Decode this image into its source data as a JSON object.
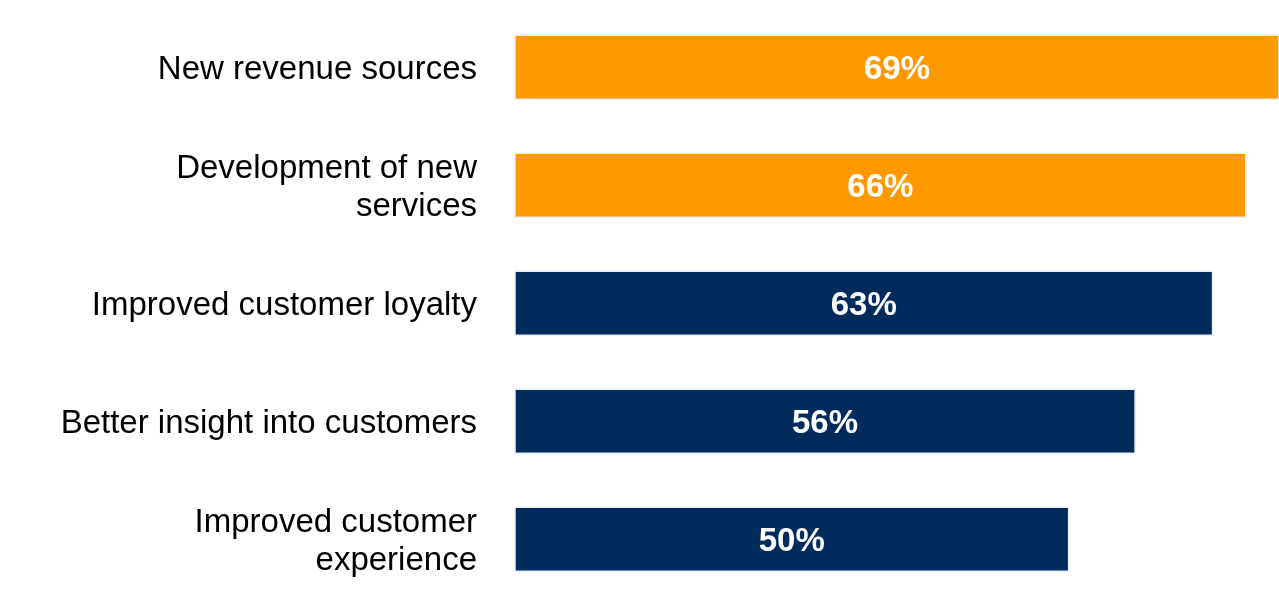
{
  "chart_data": {
    "type": "bar",
    "orientation": "horizontal",
    "data_labels": true,
    "categories": [
      "New revenue sources",
      "Development of new\nservices",
      "Improved customer loyalty",
      "Better insight into customers",
      "Improved customer\nexperience"
    ],
    "values": [
      69,
      66,
      63,
      56,
      50
    ],
    "value_labels": [
      "69%",
      "66%",
      "63%",
      "56%",
      "50%"
    ],
    "colors": [
      "#ff9900",
      "#ff9900",
      "#002b5c",
      "#002b5c",
      "#002b5c"
    ],
    "grid": false,
    "legend": false
  }
}
